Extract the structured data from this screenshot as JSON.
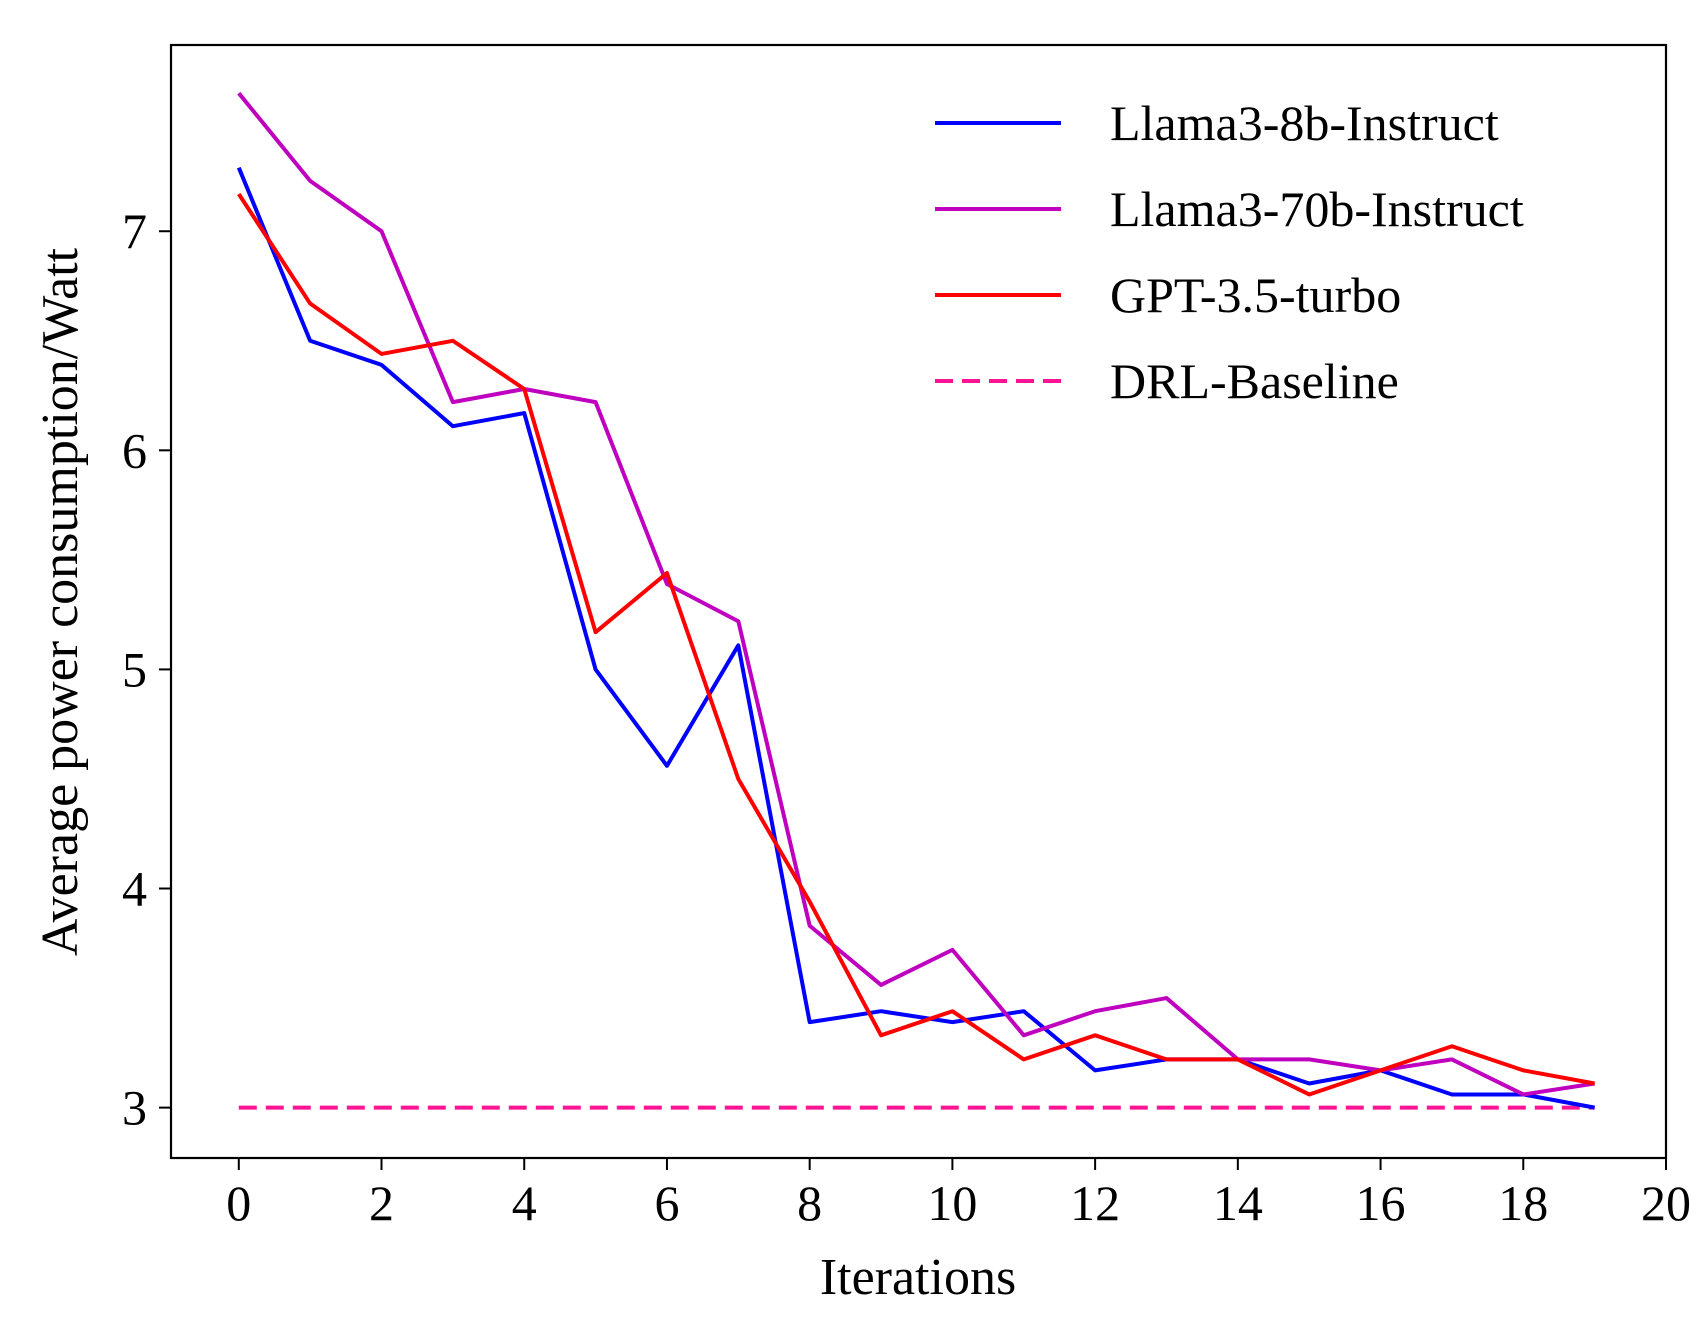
{
  "chart_data": {
    "type": "line",
    "title": "",
    "xlabel": "Iterations",
    "ylabel": "Average power consumption/Watt",
    "xlim": [
      -0.95,
      20
    ],
    "ylim": [
      2.77,
      7.85
    ],
    "xticks": [
      0,
      2,
      4,
      6,
      8,
      10,
      12,
      14,
      16,
      18,
      20
    ],
    "yticks": [
      3,
      4,
      5,
      6,
      7
    ],
    "grid": false,
    "legend_position": "upper right",
    "x": [
      0,
      1,
      2,
      3,
      4,
      5,
      6,
      7,
      8,
      9,
      10,
      11,
      12,
      13,
      14,
      15,
      16,
      17,
      18,
      19
    ],
    "series": [
      {
        "name": "Llama3-8b-Instruct",
        "color": "#0000ff",
        "dash": "solid",
        "values": [
          7.29,
          6.5,
          6.39,
          6.11,
          6.17,
          5.0,
          4.56,
          5.11,
          3.39,
          3.44,
          3.39,
          3.44,
          3.17,
          3.22,
          3.22,
          3.11,
          3.17,
          3.06,
          3.06,
          3.0
        ]
      },
      {
        "name": "Llama3-70b-Instruct",
        "color": "#bf00bf",
        "dash": "solid",
        "values": [
          7.63,
          7.23,
          7.0,
          6.22,
          6.28,
          6.22,
          5.39,
          5.22,
          3.83,
          3.56,
          3.72,
          3.33,
          3.44,
          3.5,
          3.22,
          3.22,
          3.17,
          3.22,
          3.06,
          3.11
        ]
      },
      {
        "name": "GPT-3.5-turbo",
        "color": "#ff0000",
        "dash": "solid",
        "values": [
          7.17,
          6.67,
          6.44,
          6.5,
          6.28,
          5.17,
          5.44,
          4.5,
          3.94,
          3.33,
          3.44,
          3.22,
          3.33,
          3.22,
          3.22,
          3.06,
          3.17,
          3.28,
          3.17,
          3.11
        ]
      },
      {
        "name": "DRL-Baseline",
        "color": "#ff1493",
        "dash": "dashed",
        "values": [
          3.0,
          3.0,
          3.0,
          3.0,
          3.0,
          3.0,
          3.0,
          3.0,
          3.0,
          3.0,
          3.0,
          3.0,
          3.0,
          3.0,
          3.0,
          3.0,
          3.0,
          3.0,
          3.0,
          3.0
        ]
      }
    ]
  }
}
